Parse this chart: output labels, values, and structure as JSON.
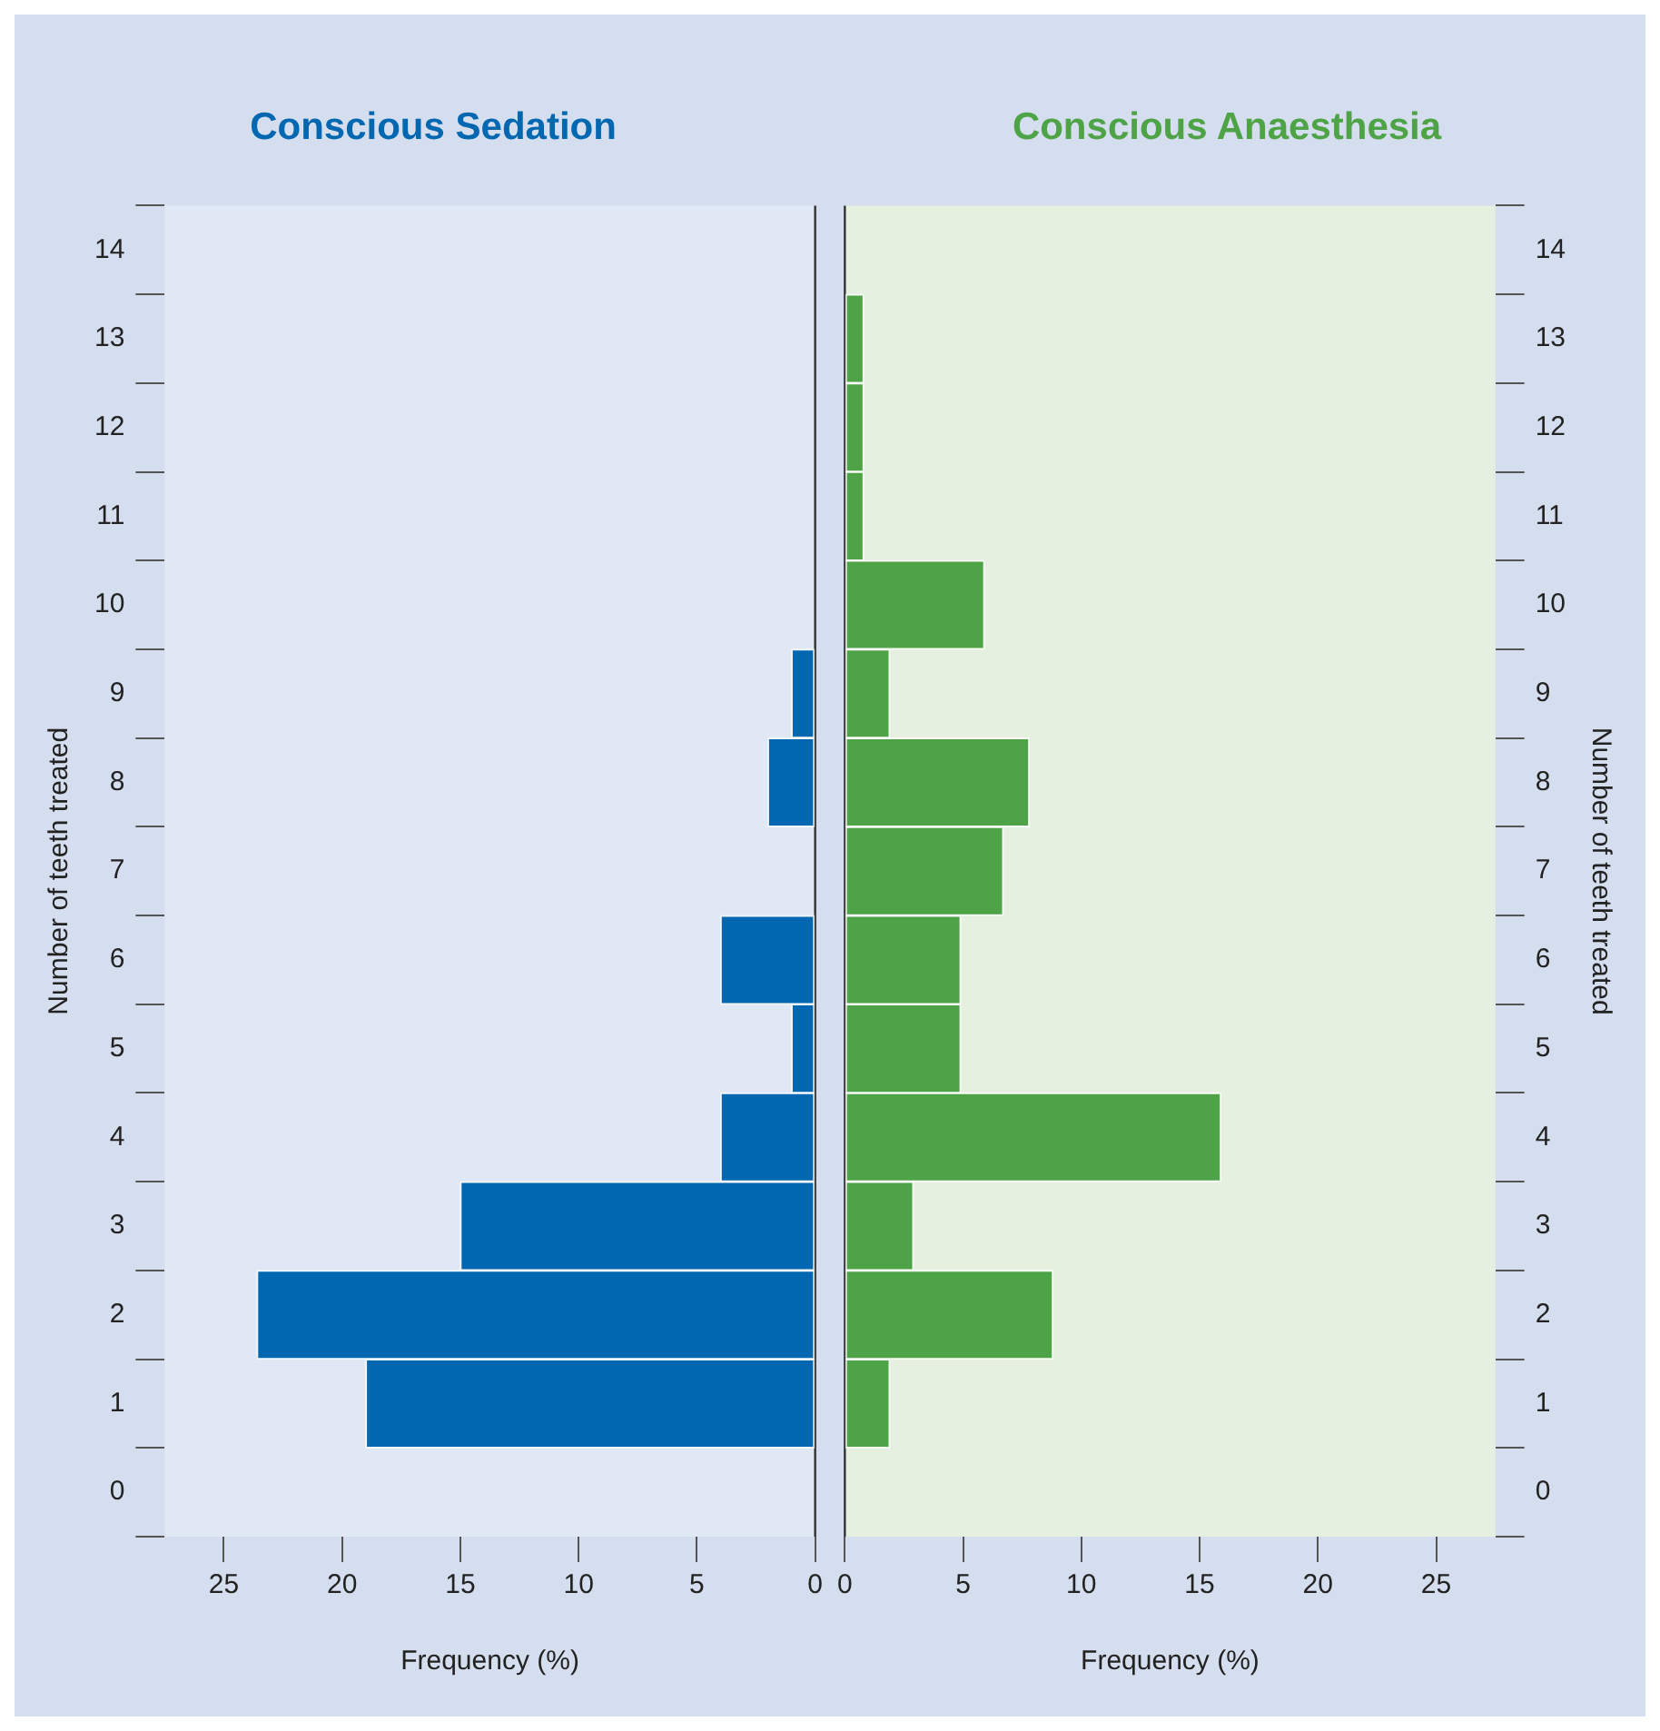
{
  "chart_data": [
    {
      "type": "bar",
      "orientation": "horizontal",
      "title": "Conscious Sedation",
      "xlabel": "Frequency (%)",
      "ylabel": "Number of teeth treated",
      "categories": [
        "14",
        "13",
        "12",
        "11",
        "10",
        "9",
        "8",
        "7",
        "6",
        "5",
        "4",
        "3",
        "2",
        "1",
        "0"
      ],
      "series": [
        {
          "color": "#0067b0",
          "values": [
            null,
            0,
            0,
            0,
            0,
            1,
            2,
            0,
            4,
            1,
            4,
            15,
            23.6,
            19,
            null
          ]
        }
      ],
      "xlim": [
        27.5,
        0
      ],
      "xticks": [
        25,
        20,
        15,
        10,
        5,
        0
      ],
      "grid": false,
      "legend": false
    },
    {
      "type": "bar",
      "orientation": "horizontal",
      "title": "Conscious Anaesthesia",
      "xlabel": "Frequency (%)",
      "ylabel": "Number of teeth treated",
      "categories": [
        "14",
        "13",
        "12",
        "11",
        "10",
        "9",
        "8",
        "7",
        "6",
        "5",
        "4",
        "3",
        "2",
        "1",
        "0"
      ],
      "series": [
        {
          "color": "#4fa347",
          "values": [
            null,
            0.8,
            0.8,
            0.8,
            5.9,
            1.9,
            7.8,
            6.7,
            4.9,
            4.9,
            15.9,
            2.9,
            8.8,
            1.9,
            null
          ]
        }
      ],
      "xlim": [
        0,
        27.5
      ],
      "xticks": [
        0,
        5,
        10,
        15,
        20,
        25
      ],
      "grid": false,
      "legend": false
    }
  ]
}
